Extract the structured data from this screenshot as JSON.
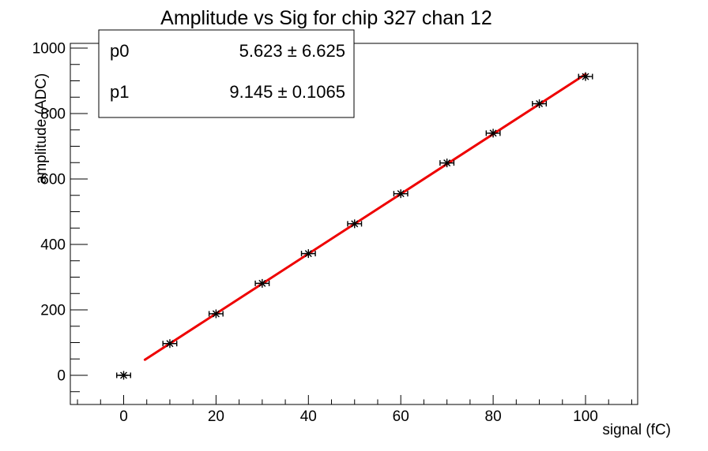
{
  "title": "Amplitude vs Sig for chip 327 chan 12",
  "stats_box": {
    "rows": [
      {
        "name": "p0",
        "value": "5.623 ± 6.625"
      },
      {
        "name": "p1",
        "value": "9.145 ± 0.1065"
      }
    ]
  },
  "chart_data": {
    "type": "scatter",
    "title": "Amplitude vs Sig for chip 327 chan 12",
    "xlabel": "signal (fC)",
    "ylabel": "amplitude (ADC)",
    "x": [
      0,
      10,
      20,
      30,
      40,
      50,
      60,
      70,
      80,
      90,
      100
    ],
    "y": [
      0,
      97,
      188,
      281,
      372,
      463,
      555,
      649,
      740,
      830,
      913
    ],
    "x_error": 1.5,
    "marker": "asterisk",
    "marker_color": "#000000",
    "fit": {
      "type": "linear",
      "p0": 5.623,
      "p0_err": 6.625,
      "p1": 9.145,
      "p1_err": 0.1065,
      "range": [
        4.6,
        100
      ],
      "color": "#ee0000"
    },
    "xlim": [
      -11.5,
      111.4
    ],
    "ylim": [
      -89,
      1014
    ],
    "xticks": [
      0,
      20,
      40,
      60,
      80,
      100
    ],
    "yticks": [
      0,
      200,
      400,
      600,
      800,
      1000
    ],
    "x_minor_step": 5,
    "y_minor_step": 50,
    "grid": false,
    "legend": "none",
    "frame_color": "#000000",
    "background": "#ffffff"
  }
}
